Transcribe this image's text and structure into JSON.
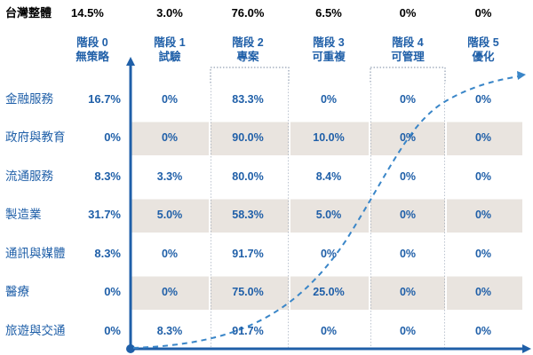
{
  "chart_data": {
    "type": "table",
    "overall": {
      "label": "台灣整體",
      "value": "14.5%",
      "stage_values": [
        "3.0%",
        "76.0%",
        "6.5%",
        "0%",
        "0%"
      ]
    },
    "stages": [
      {
        "line1": "階段 0",
        "line2": "無策略"
      },
      {
        "line1": "階段 1",
        "line2": "試驗"
      },
      {
        "line1": "階段 2",
        "line2": "專案"
      },
      {
        "line1": "階段 3",
        "line2": "可重複"
      },
      {
        "line1": "階段 4",
        "line2": "可管理"
      },
      {
        "line1": "階段 5",
        "line2": "優化"
      }
    ],
    "rows": [
      {
        "name": "金融服務",
        "stage0": "16.7%",
        "values": [
          "0%",
          "83.3%",
          "0%",
          "0%",
          "0%"
        ]
      },
      {
        "name": "政府與教育",
        "stage0": "0%",
        "values": [
          "0%",
          "90.0%",
          "10.0%",
          "0%",
          "0%"
        ]
      },
      {
        "name": "流通服務",
        "stage0": "8.3%",
        "values": [
          "3.3%",
          "80.0%",
          "8.4%",
          "0%",
          "0%"
        ]
      },
      {
        "name": "製造業",
        "stage0": "31.7%",
        "values": [
          "5.0%",
          "58.3%",
          "5.0%",
          "0%",
          "0%"
        ]
      },
      {
        "name": "通訊與媒體",
        "stage0": "8.3%",
        "values": [
          "0%",
          "91.7%",
          "0%",
          "0%",
          "0%"
        ]
      },
      {
        "name": "醫療",
        "stage0": "0%",
        "values": [
          "0%",
          "75.0%",
          "25.0%",
          "0%",
          "0%"
        ]
      },
      {
        "name": "旅遊與交通",
        "stage0": "0%",
        "values": [
          "8.3%",
          "91.7%",
          "0%",
          "0%",
          "0%"
        ]
      }
    ],
    "colors": {
      "accent": "#1f5fa8",
      "shaded_row": "#e9e4df",
      "axis": "#1f5fa8",
      "curve": "#3a86c8"
    }
  }
}
